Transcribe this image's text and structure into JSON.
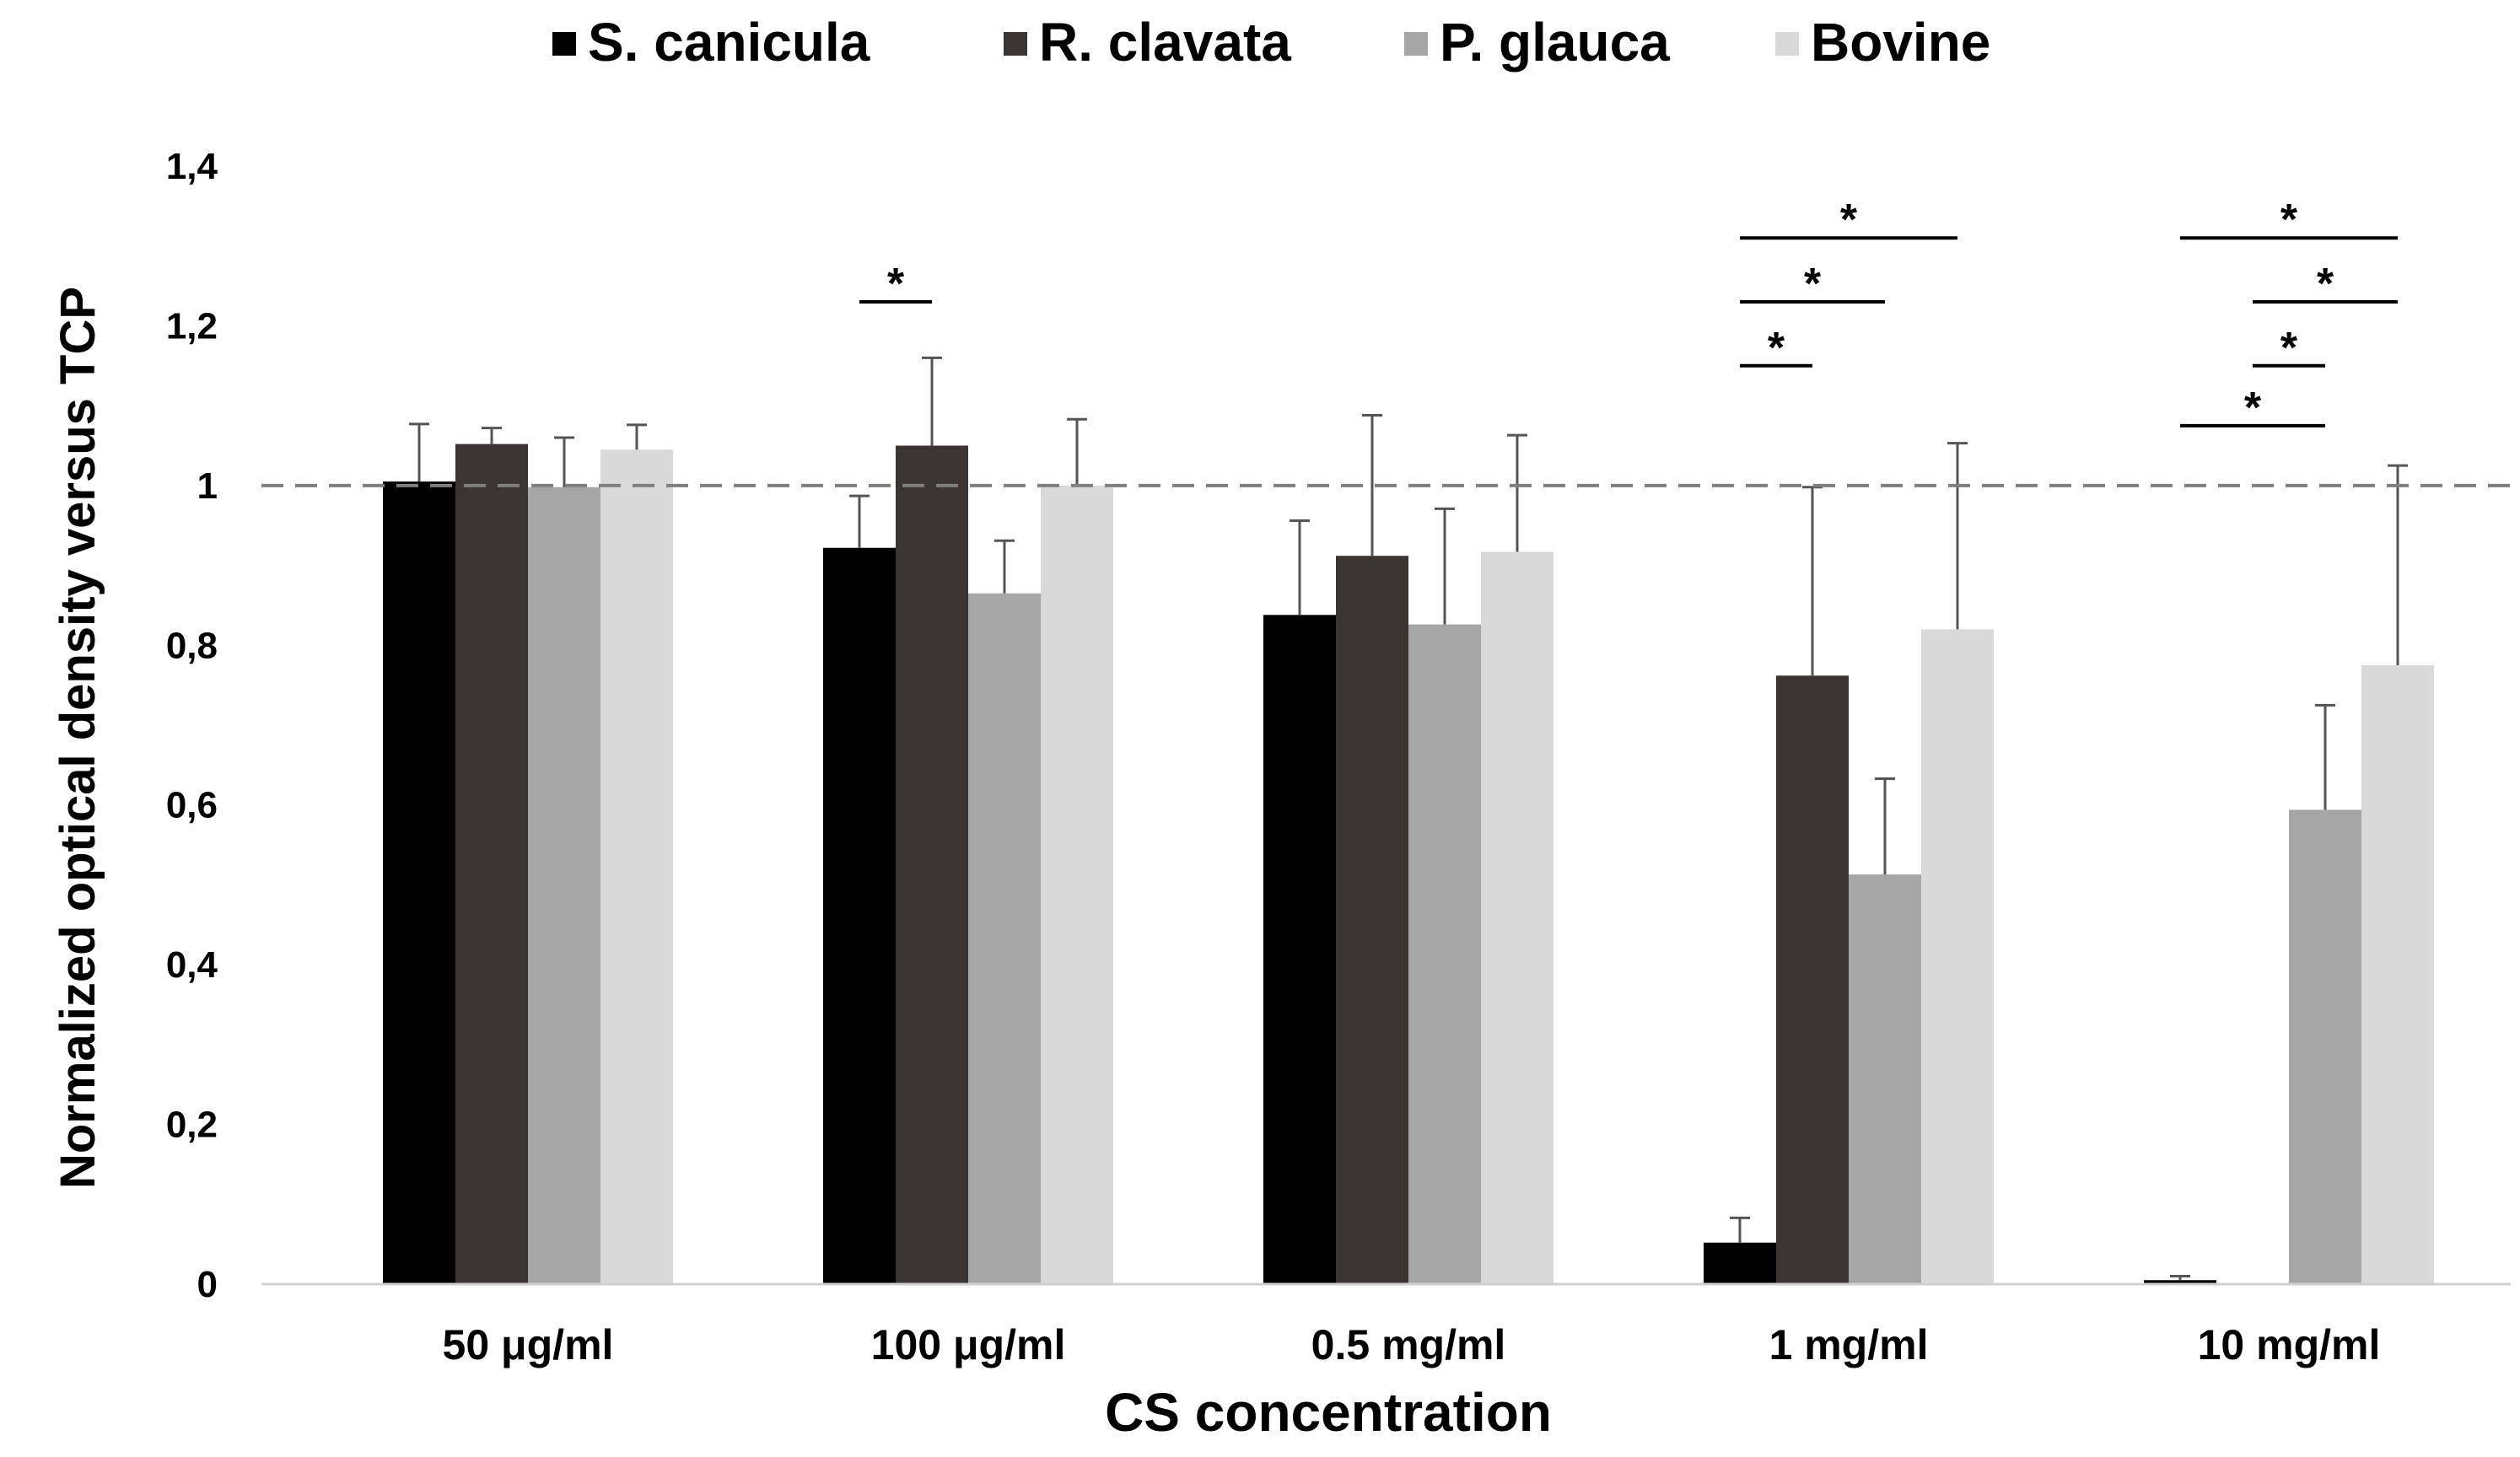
{
  "chart_data": {
    "type": "bar",
    "title": "",
    "xlabel": "CS concentration",
    "ylabel": "Normalized optical density versus TCP",
    "categories": [
      "50 μg/ml",
      "100 μg/ml",
      "0.5 mg/ml",
      "1 mg/ml",
      "10 mg/ml"
    ],
    "series": [
      {
        "name": "S. canicula",
        "color": "#000000",
        "values": [
          1.005,
          0.922,
          0.838,
          0.052,
          0.005
        ],
        "errors": [
          0.072,
          0.065,
          0.118,
          0.031,
          0.005
        ]
      },
      {
        "name": "R. clavata",
        "color": "#3a3532",
        "values": [
          1.052,
          1.05,
          0.912,
          0.762,
          0.0
        ],
        "errors": [
          0.02,
          0.11,
          0.176,
          0.236,
          0.0
        ]
      },
      {
        "name": "P. glauca",
        "color": "#a6a6a6",
        "values": [
          0.998,
          0.865,
          0.826,
          0.513,
          0.594
        ],
        "errors": [
          0.062,
          0.066,
          0.145,
          0.12,
          0.131
        ]
      },
      {
        "name": "Bovine",
        "color": "#d9d9d9",
        "values": [
          1.045,
          1.0,
          0.917,
          0.82,
          0.775
        ],
        "errors": [
          0.031,
          0.083,
          0.146,
          0.233,
          0.25
        ]
      }
    ],
    "ylim": [
      0,
      1.4
    ],
    "yticks": [
      "0",
      "0,2",
      "0,4",
      "0,6",
      "0,8",
      "1",
      "1,2",
      "1,4"
    ],
    "reference_line": 1.0,
    "grid": false,
    "legend_position": "top-center",
    "significance": [
      {
        "category": 1,
        "from": 0,
        "to": 1,
        "level": 1.23,
        "label": "*"
      },
      {
        "category": 3,
        "from": 0,
        "to": 1,
        "level": 1.15,
        "label": "*"
      },
      {
        "category": 3,
        "from": 0,
        "to": 2,
        "level": 1.23,
        "label": "*"
      },
      {
        "category": 3,
        "from": 0,
        "to": 3,
        "level": 1.31,
        "label": "*"
      },
      {
        "category": 4,
        "from": 0,
        "to": 2,
        "level": 1.075,
        "label": "*"
      },
      {
        "category": 4,
        "from": 1,
        "to": 2,
        "level": 1.15,
        "label": "*"
      },
      {
        "category": 4,
        "from": 1,
        "to": 3,
        "level": 1.23,
        "label": "*"
      },
      {
        "category": 4,
        "from": 0,
        "to": 3,
        "level": 1.31,
        "label": "*"
      }
    ]
  }
}
